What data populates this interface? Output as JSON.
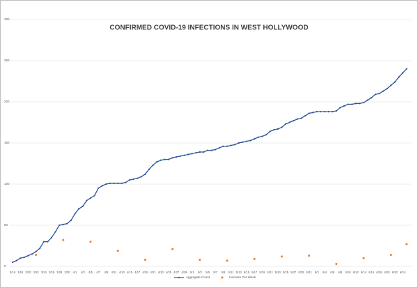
{
  "chart_data": {
    "type": "line",
    "title": "CONFIRMED COVID-19 INFECTIONS IN WEST HOLLYWOOD",
    "categories": [
      "3/16",
      null,
      "3/18",
      null,
      "3/20",
      null,
      "3/22",
      null,
      "3/24",
      null,
      "3/26",
      null,
      "3/28",
      null,
      "3/30",
      null,
      "4/1",
      null,
      "4/3",
      null,
      "4/5",
      null,
      "4/7",
      null,
      "4/9",
      null,
      "4/11",
      null,
      "4/13",
      null,
      "4/15",
      null,
      "4/17",
      null,
      "4/19",
      null,
      "4/21",
      null,
      "4/23",
      null,
      "4/25",
      null,
      "4/27",
      null,
      "4/29",
      null,
      "5/1",
      null,
      "5/3",
      null,
      "5/5",
      null,
      "5/7",
      null,
      "5/9",
      null,
      "5/11",
      null,
      "5/13",
      null,
      "5/15",
      null,
      "5/17",
      null,
      "5/19",
      null,
      "5/21",
      null,
      "5/23",
      null,
      "5/25",
      null,
      "5/27",
      null,
      "5/29",
      null,
      "5/31",
      null,
      "6/2",
      null,
      "6/4",
      null,
      "6/6",
      null,
      "6/8",
      null,
      "6/10",
      null,
      "6/12",
      null,
      "6/14",
      null,
      "6/16",
      null,
      "6/18",
      null,
      "6/20",
      null,
      "6/22",
      null,
      "6/24",
      null
    ],
    "series": [
      {
        "name": "Aggregate Count",
        "color": "#2f5597",
        "style": "line",
        "values": [
          5,
          7,
          10,
          11,
          13,
          15,
          18,
          22,
          30,
          30,
          35,
          42,
          50,
          51,
          52,
          56,
          64,
          70,
          73,
          80,
          83,
          86,
          95,
          98,
          100,
          101,
          101,
          101,
          101,
          102,
          105,
          106,
          107,
          109,
          112,
          118,
          123,
          127,
          129,
          130,
          130,
          132,
          133,
          134,
          135,
          136,
          137,
          138,
          139,
          139,
          141,
          141,
          142,
          144,
          146,
          146,
          147,
          148,
          150,
          151,
          152,
          153,
          155,
          157,
          158,
          160,
          164,
          166,
          167,
          169,
          173,
          175,
          177,
          179,
          180,
          183,
          186,
          187,
          188,
          188,
          188,
          188,
          188,
          189,
          193,
          195,
          197,
          197,
          198,
          198,
          199,
          202,
          205,
          209,
          210,
          213,
          216,
          220,
          224,
          230,
          235,
          240
        ]
      },
      {
        "name": "Increase Per Week",
        "color": "#ed7d31",
        "style": "markers",
        "values": [
          null,
          null,
          null,
          null,
          null,
          null,
          14,
          null,
          null,
          null,
          null,
          null,
          null,
          32,
          null,
          null,
          null,
          null,
          null,
          null,
          30,
          null,
          null,
          null,
          null,
          null,
          null,
          19,
          null,
          null,
          null,
          null,
          null,
          null,
          8,
          null,
          null,
          null,
          null,
          null,
          null,
          21,
          null,
          null,
          null,
          null,
          null,
          null,
          8,
          null,
          null,
          null,
          null,
          null,
          null,
          7,
          null,
          null,
          null,
          null,
          null,
          null,
          9,
          null,
          null,
          null,
          null,
          null,
          null,
          12,
          null,
          null,
          null,
          null,
          null,
          null,
          13,
          null,
          null,
          null,
          null,
          null,
          null,
          3,
          null,
          null,
          null,
          null,
          null,
          null,
          10,
          null,
          null,
          null,
          null,
          null,
          null,
          14,
          null,
          null,
          null,
          27
        ]
      }
    ],
    "ylim": [
      0,
      300
    ],
    "yticks": [
      0,
      50,
      100,
      150,
      200,
      250,
      300
    ],
    "grid": true,
    "legend": "bottom"
  }
}
